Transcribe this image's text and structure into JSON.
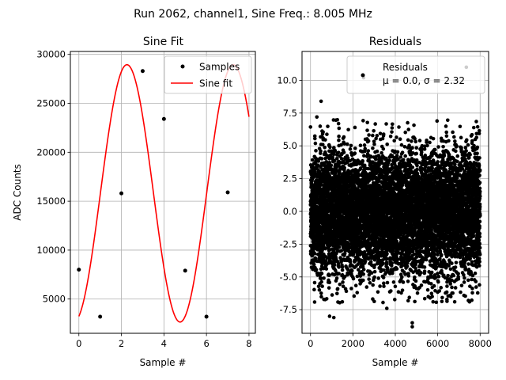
{
  "suptitle": "Run 2062, channel1, Sine Freq.: 8.005 MHz",
  "chart_data": [
    {
      "type": "line",
      "title": "Sine Fit",
      "xlabel": "Sample #",
      "ylabel": "ADC Counts",
      "xlim": [
        -0.4,
        8.3
      ],
      "ylim": [
        1500,
        30300
      ],
      "xticks": [
        0,
        2,
        4,
        6,
        8
      ],
      "yticks": [
        5000,
        10000,
        15000,
        20000,
        25000,
        30000
      ],
      "grid": true,
      "legend_position": "top-right",
      "series": [
        {
          "name": "Samples",
          "style": "points",
          "color": "#000000",
          "x": [
            0,
            1,
            2,
            3,
            4,
            5,
            6,
            7
          ],
          "y": [
            8000,
            3200,
            15800,
            28300,
            23400,
            7900,
            3200,
            15900
          ]
        },
        {
          "name": "Sine fit",
          "style": "line",
          "color": "#ff0000",
          "model": {
            "offset": 15800,
            "amplitude": 13150,
            "period": 4.99688,
            "phase": 1.2718
          },
          "x_range": [
            0,
            8
          ]
        }
      ]
    },
    {
      "type": "scatter",
      "title": "Residuals",
      "xlabel": "Sample #",
      "ylabel": "",
      "xlim": [
        -400,
        8400
      ],
      "ylim": [
        -9.3,
        12.2
      ],
      "xticks": [
        0,
        2000,
        4000,
        6000,
        8000
      ],
      "yticks": [
        -7.5,
        -5.0,
        -2.5,
        0.0,
        2.5,
        5.0,
        7.5,
        10.0
      ],
      "grid": true,
      "legend_position": "top-right",
      "series": [
        {
          "name": "Residuals",
          "style": "points",
          "color": "#000000",
          "n_points": 8000,
          "mu": 0.0,
          "sigma": 2.32,
          "outliers": [
            {
              "x": 500,
              "y": 8.4
            },
            {
              "x": 900,
              "y": -8.0
            },
            {
              "x": 1100,
              "y": -8.1
            },
            {
              "x": 4800,
              "y": -8.5
            },
            {
              "x": 4800,
              "y": -8.8
            },
            {
              "x": 7350,
              "y": 11.0
            },
            {
              "x": 2500,
              "y": 10.2
            },
            {
              "x": 3600,
              "y": -7.4
            },
            {
              "x": 1500,
              "y": -6.9
            },
            {
              "x": 6800,
              "y": -6.9
            },
            {
              "x": 7500,
              "y": -6.9
            },
            {
              "x": 300,
              "y": 7.2
            }
          ]
        }
      ],
      "legend_lines": [
        "Residuals",
        "μ = 0.0, σ = 2.32"
      ]
    }
  ]
}
